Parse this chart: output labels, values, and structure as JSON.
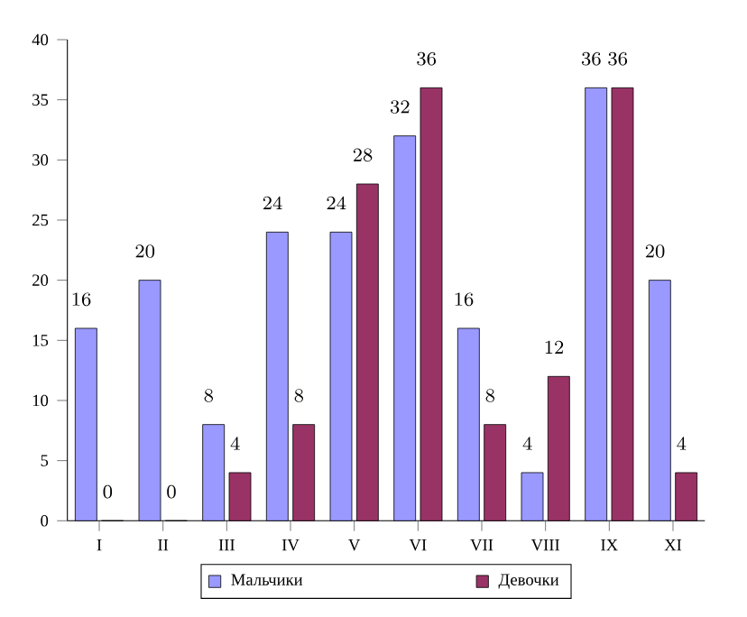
{
  "chart_data": {
    "type": "bar",
    "categories": [
      "I",
      "II",
      "III",
      "IV",
      "V",
      "VI",
      "VII",
      "VIII",
      "IX",
      "XI"
    ],
    "series": [
      {
        "name": "Мальчики",
        "color": "#9999ff",
        "values": [
          16,
          20,
          8,
          24,
          24,
          32,
          16,
          4,
          36,
          20
        ]
      },
      {
        "name": "Девочки",
        "color": "#993366",
        "values": [
          0,
          0,
          4,
          8,
          28,
          36,
          8,
          12,
          36,
          4
        ]
      }
    ],
    "ylim": [
      0,
      40
    ],
    "yticks": [
      0,
      5,
      10,
      15,
      20,
      25,
      30,
      35,
      40
    ],
    "data_labels": true,
    "legend": "bottom"
  }
}
